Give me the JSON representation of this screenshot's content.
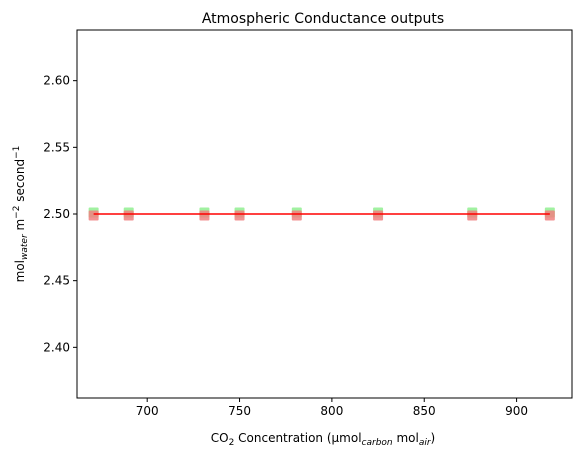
{
  "chart_data": {
    "type": "scatter",
    "title": "Atmospheric Conductance outputs",
    "xlabel": {
      "parts": [
        {
          "t": "CO",
          "s": "n"
        },
        {
          "t": "2",
          "s": "sub"
        },
        {
          "t": " Concentration (µmol",
          "s": "n"
        },
        {
          "t": "carbon",
          "s": "sub-i"
        },
        {
          "t": " mol",
          "s": "n"
        },
        {
          "t": "air",
          "s": "sub-i"
        },
        {
          "t": ")",
          "s": "n"
        }
      ]
    },
    "ylabel": {
      "parts": [
        {
          "t": "mol",
          "s": "n"
        },
        {
          "t": "water",
          "s": "sub-i"
        },
        {
          "t": " m",
          "s": "n"
        },
        {
          "t": "−2",
          "s": "sup"
        },
        {
          "t": " second",
          "s": "n"
        },
        {
          "t": "−1",
          "s": "sup"
        }
      ]
    },
    "xlim": [
      662,
      930
    ],
    "ylim": [
      2.362,
      2.638
    ],
    "xticks": [
      700,
      750,
      800,
      850,
      900
    ],
    "yticks": [
      2.4,
      2.45,
      2.5,
      2.55,
      2.6
    ],
    "ytick_labels": [
      "2.40",
      "2.45",
      "2.50",
      "2.55",
      "2.60"
    ],
    "grid": false,
    "series": [
      {
        "kind": "scatter",
        "color": "#90ee90",
        "x": [
          671,
          690,
          731,
          750,
          781,
          825,
          876,
          918
        ],
        "y": [
          2.5,
          2.5,
          2.5,
          2.5,
          2.5,
          2.5,
          2.5,
          2.5
        ]
      },
      {
        "kind": "scatter",
        "color": "#f08080",
        "x": [
          671,
          690,
          731,
          750,
          781,
          825,
          876,
          918
        ],
        "y": [
          2.5,
          2.5,
          2.5,
          2.5,
          2.5,
          2.5,
          2.5,
          2.5
        ]
      },
      {
        "kind": "line",
        "color": "#ff0000",
        "x": [
          671,
          918
        ],
        "y": [
          2.5,
          2.5
        ]
      }
    ]
  }
}
